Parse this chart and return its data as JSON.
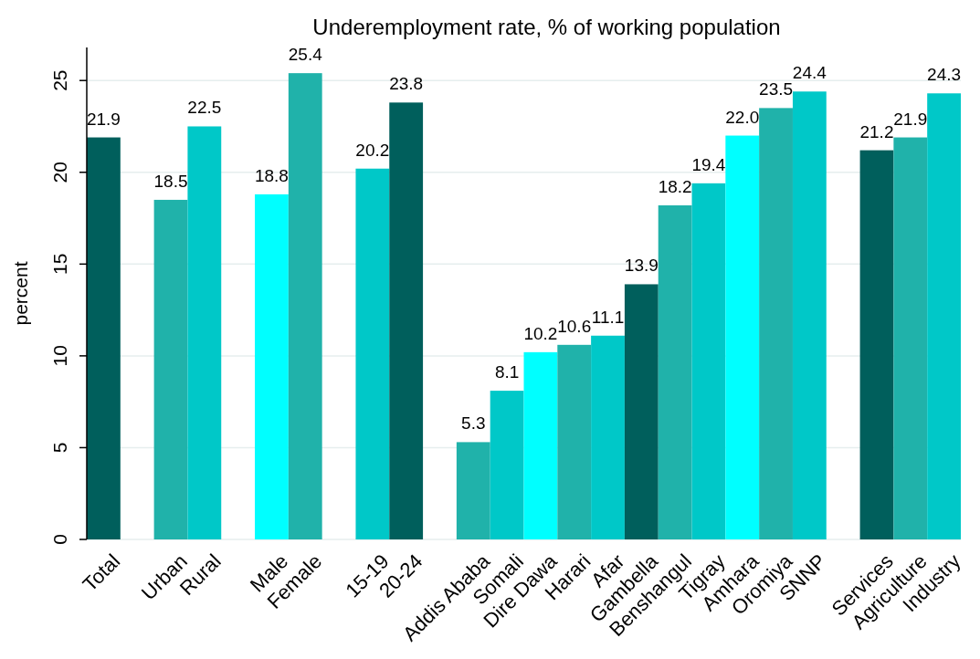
{
  "chart_data": {
    "type": "bar",
    "title": "Underemployment rate, % of working population",
    "ylabel": "percent",
    "categories": [
      "Total",
      null,
      "Urban",
      "Rural",
      null,
      "Male",
      "Female",
      null,
      "15-19",
      "20-24",
      null,
      "Addis Ababa",
      "Somali",
      "Dire Dawa",
      "Harari",
      "Afar",
      "Gambella",
      "Benshangul",
      "Tigray",
      "Amhara",
      "Oromiya",
      "SNNP",
      null,
      "Services",
      "Agriculture",
      "Industry"
    ],
    "values": [
      21.9,
      null,
      18.5,
      22.5,
      null,
      18.8,
      25.4,
      null,
      20.2,
      23.8,
      null,
      5.3,
      8.1,
      10.2,
      10.6,
      11.1,
      13.9,
      18.2,
      19.4,
      22.0,
      23.5,
      24.4,
      null,
      21.2,
      21.9,
      24.3
    ],
    "colors": [
      "#005f5c",
      null,
      "#20b2aa",
      "#00c8c8",
      null,
      "#00ffff",
      "#20b2aa",
      null,
      "#00c8c8",
      "#005f5c",
      null,
      "#20b2aa",
      "#00c8c8",
      "#00ffff",
      "#20b2aa",
      "#00c8c8",
      "#005f5c",
      "#20b2aa",
      "#00c8c8",
      "#00ffff",
      "#20b2aa",
      "#00c8c8",
      null,
      "#005f5c",
      "#20b2aa",
      "#00c8c8"
    ],
    "value_labels": [
      "21.9",
      null,
      "18.5",
      "22.5",
      null,
      "18.8",
      "25.4",
      null,
      "20.2",
      "23.8",
      null,
      "5.3",
      "8.1",
      "10.2",
      "10.6",
      "11.1",
      "13.9",
      "18.2",
      "19.4",
      "22.0",
      "23.5",
      "24.4",
      null,
      "21.2",
      "21.9",
      "24.3"
    ],
    "ylim": [
      0,
      26.8
    ],
    "yticks": [
      0,
      5,
      10,
      15,
      20,
      25
    ],
    "grid": "y"
  }
}
